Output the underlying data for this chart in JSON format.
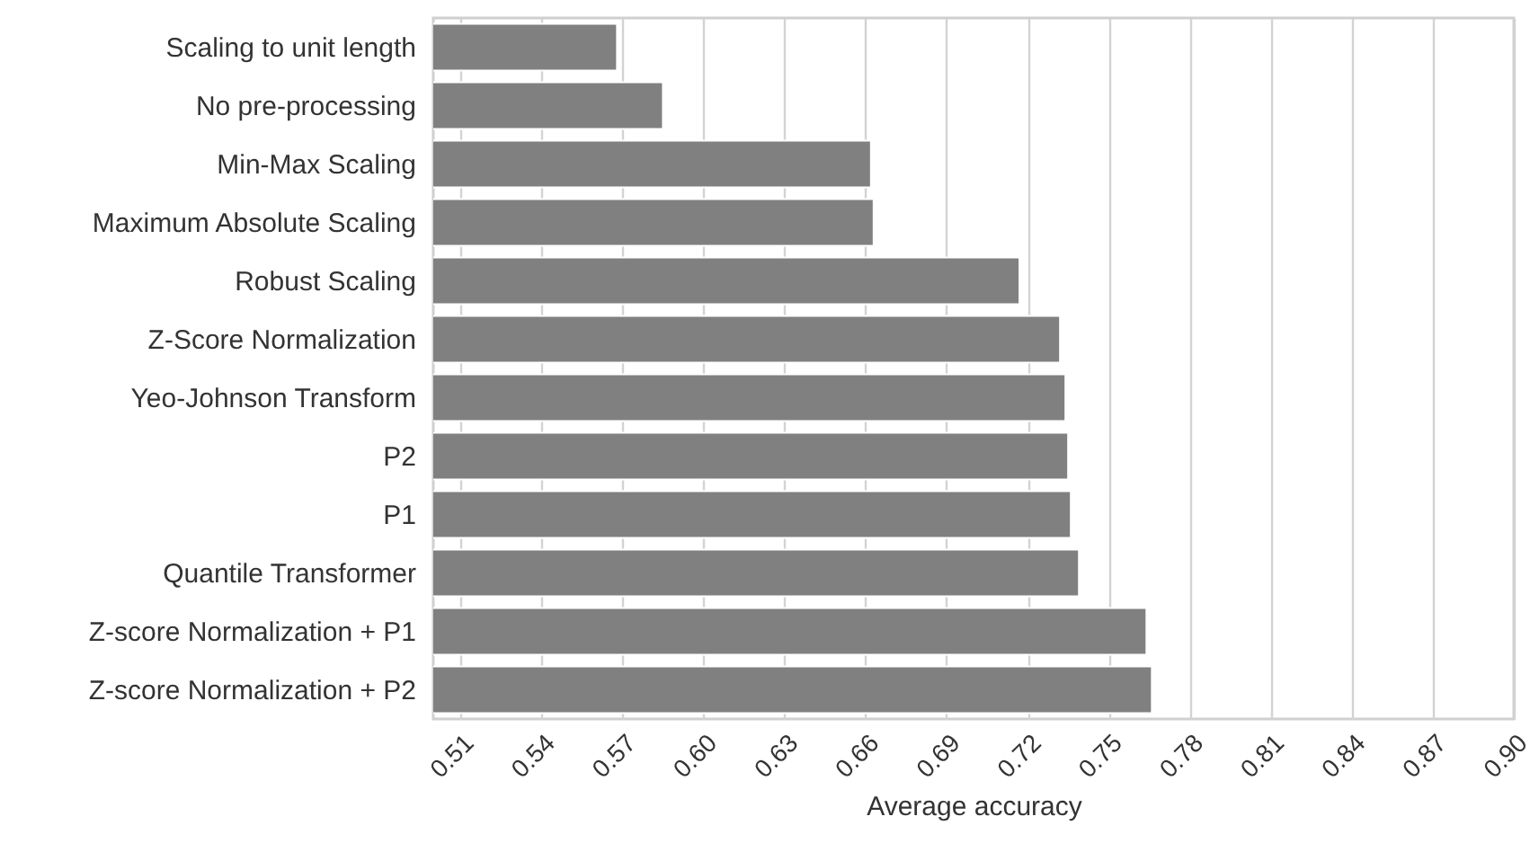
{
  "chart_data": {
    "type": "bar",
    "orientation": "horizontal",
    "xlabel": "Average accuracy",
    "categories": [
      "Scaling to unit length",
      "No pre-processing",
      "Min-Max Scaling",
      "Maximum Absolute Scaling",
      "Robust Scaling",
      "Z-Score Normalization",
      "Yeo-Johnson Transform",
      "P2",
      "P1",
      "Quantile Transformer",
      "Z-score Normalization + P1",
      "Z-score Normalization + P2"
    ],
    "values": [
      0.568,
      0.585,
      0.662,
      0.663,
      0.717,
      0.732,
      0.734,
      0.735,
      0.736,
      0.739,
      0.764,
      0.766
    ],
    "color": "#808080",
    "xlim": [
      0.5,
      0.9
    ],
    "xticks": [
      0.51,
      0.54,
      0.57,
      {
        "value": 0.6,
        "label": "0.60"
      },
      0.63,
      0.66,
      0.69,
      0.72,
      0.75,
      0.78,
      0.81,
      0.84,
      0.87,
      {
        "value": 0.9,
        "label": "0.90"
      }
    ],
    "grid": "x"
  }
}
